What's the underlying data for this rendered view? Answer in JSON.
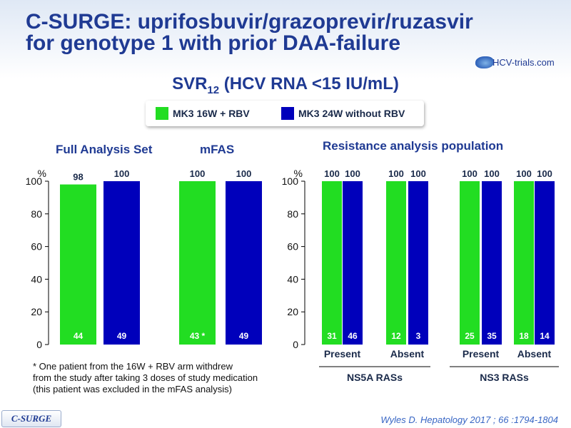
{
  "header": {
    "title_line1": "C-SURGE: uprifosbuvir/grazoprevir/ruzasvir",
    "title_line2": "for genotype 1 with prior DAA-failure",
    "logo_text": "HCV-trials.com",
    "subtitle_main": "SVR",
    "subtitle_sub": "12",
    "subtitle_rest": " (HCV RNA <15 IU/mL)"
  },
  "legend": {
    "items": [
      {
        "label": "MK3 16W + RBV",
        "color": "#22dd22"
      },
      {
        "label": "MK3 24W without RBV",
        "color": "#0000bb"
      }
    ]
  },
  "colors": {
    "green": "#22dd22",
    "blue": "#0000bb",
    "axis": "#000000"
  },
  "chart_data": [
    {
      "type": "bar",
      "ylabel": "%",
      "ylim": [
        0,
        100
      ],
      "yticks": [
        "0",
        "20",
        "40",
        "60",
        "80",
        "100"
      ],
      "groups": [
        {
          "title": "Full Analysis Set",
          "values": [
            98,
            100
          ],
          "value_labels": [
            "98",
            "100"
          ],
          "n": [
            "44",
            "49"
          ]
        },
        {
          "title": "mFAS",
          "values": [
            100,
            100
          ],
          "value_labels": [
            "100",
            "100"
          ],
          "n": [
            "43 *",
            "49"
          ]
        }
      ],
      "series": [
        {
          "name": "MK3 16W + RBV"
        },
        {
          "name": "MK3 24W without RBV"
        }
      ]
    },
    {
      "type": "bar",
      "title": "Resistance analysis population",
      "ylabel": "%",
      "ylim": [
        0,
        100
      ],
      "yticks": [
        "0",
        "20",
        "40",
        "60",
        "80",
        "100"
      ],
      "categories": [
        "Present",
        "Absent",
        "Present",
        "Absent"
      ],
      "category_groups": [
        {
          "label": "NS5A RASs"
        },
        {
          "label": "NS3 RASs"
        }
      ],
      "groups": [
        {
          "values": [
            100,
            100
          ],
          "value_labels": [
            "100",
            "100"
          ],
          "n": [
            "31",
            "46"
          ]
        },
        {
          "values": [
            100,
            100
          ],
          "value_labels": [
            "100",
            "100"
          ],
          "n": [
            "12",
            "3"
          ]
        },
        {
          "values": [
            100,
            100
          ],
          "value_labels": [
            "100",
            "100"
          ],
          "n": [
            "25",
            "35"
          ]
        },
        {
          "values": [
            100,
            100
          ],
          "value_labels": [
            "100",
            "100"
          ],
          "n": [
            "18",
            "14"
          ]
        }
      ],
      "series": [
        {
          "name": "MK3 16W + RBV"
        },
        {
          "name": "MK3 24W without RBV"
        }
      ]
    }
  ],
  "footnote": {
    "line1": "* One patient from the 16W + RBV arm withdrew",
    "line2": "from the study after taking 3 doses of study medication",
    "line3": "(this patient was excluded in the mFAS analysis)"
  },
  "footer": {
    "badge": "C-SURGE",
    "citation": "Wyles D. Hepatology 2017 ; 66 :1794-1804"
  }
}
